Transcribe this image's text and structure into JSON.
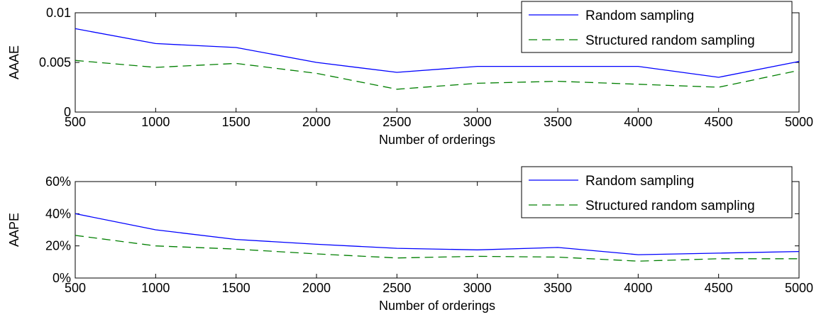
{
  "chart_data": [
    {
      "type": "line",
      "xlabel": "Number of orderings",
      "ylabel": "AAAE",
      "x": [
        500,
        1000,
        1500,
        2000,
        2500,
        3000,
        3500,
        4000,
        4500,
        5000
      ],
      "xlim": [
        500,
        5000
      ],
      "ylim": [
        0,
        0.01
      ],
      "xticks": [
        500,
        1000,
        1500,
        2000,
        2500,
        3000,
        3500,
        4000,
        4500,
        5000
      ],
      "yticks": [
        0,
        0.005,
        0.01
      ],
      "ytick_labels": [
        "0",
        "0.005",
        "0.01"
      ],
      "legend_position": "top-right",
      "grid": false,
      "series": [
        {
          "name": "Random sampling",
          "color": "#0000ff",
          "style": "solid",
          "values": [
            0.0084,
            0.0069,
            0.0065,
            0.005,
            0.004,
            0.0046,
            0.0046,
            0.0046,
            0.0035,
            0.0051
          ]
        },
        {
          "name": "Structured random sampling",
          "color": "#007f00",
          "style": "dashed",
          "values": [
            0.0052,
            0.0045,
            0.0049,
            0.0039,
            0.0023,
            0.0029,
            0.0031,
            0.0028,
            0.0025,
            0.0042
          ]
        }
      ]
    },
    {
      "type": "line",
      "xlabel": "Number of orderings",
      "ylabel": "AAPE",
      "x": [
        500,
        1000,
        1500,
        2000,
        2500,
        3000,
        3500,
        4000,
        4500,
        5000
      ],
      "xlim": [
        500,
        5000
      ],
      "ylim": [
        0,
        60
      ],
      "xticks": [
        500,
        1000,
        1500,
        2000,
        2500,
        3000,
        3500,
        4000,
        4500,
        5000
      ],
      "yticks": [
        0,
        20,
        40,
        60
      ],
      "ytick_labels": [
        "0%",
        "20%",
        "40%",
        "60%"
      ],
      "legend_position": "top-right",
      "grid": false,
      "series": [
        {
          "name": "Random sampling",
          "color": "#0000ff",
          "style": "solid",
          "values": [
            40,
            30,
            24,
            21,
            18.5,
            17.5,
            19,
            14.5,
            15.5,
            16.5
          ]
        },
        {
          "name": "Structured random sampling",
          "color": "#007f00",
          "style": "dashed",
          "values": [
            26.5,
            20,
            18,
            15,
            12.5,
            13.5,
            13,
            10.5,
            12,
            12
          ]
        }
      ]
    }
  ]
}
